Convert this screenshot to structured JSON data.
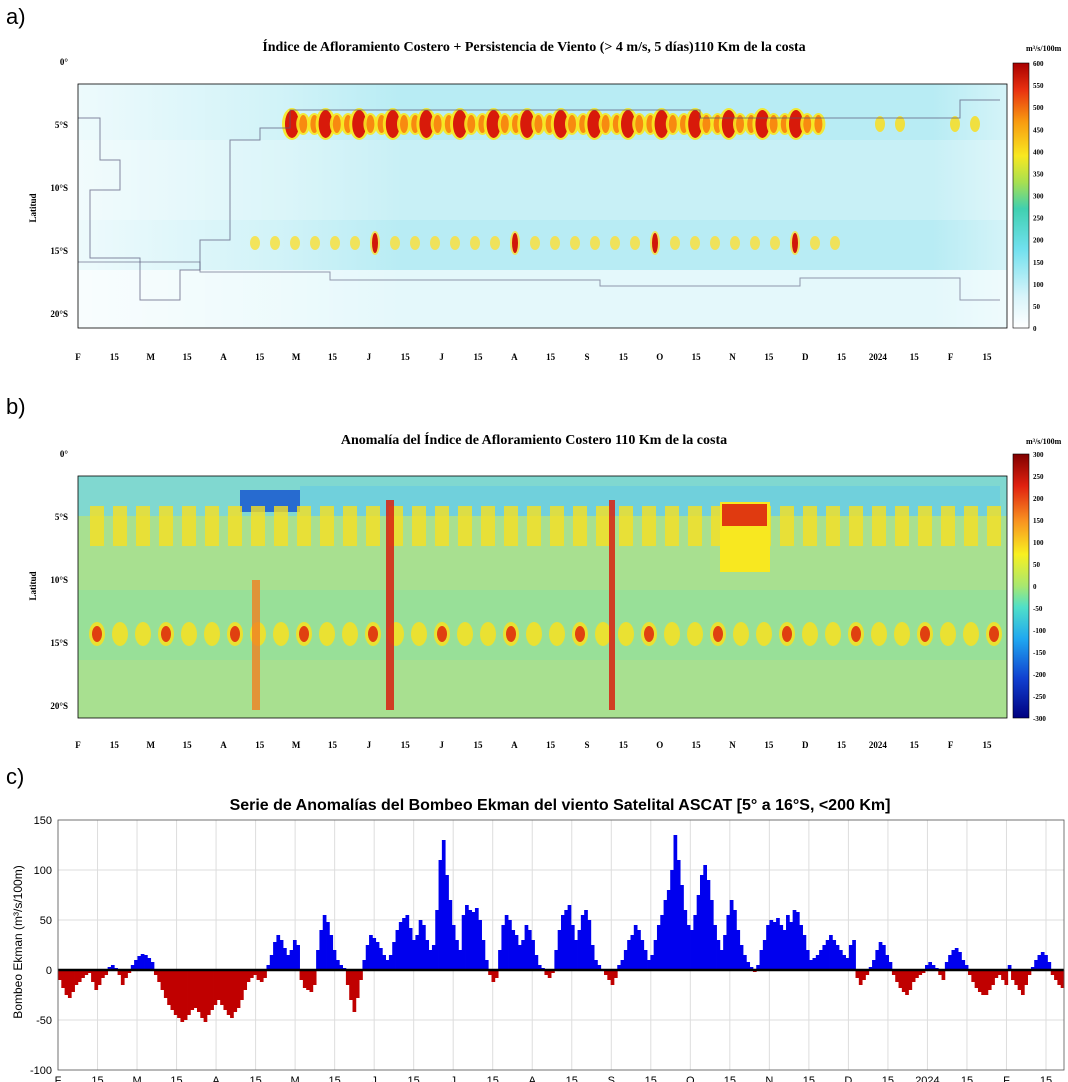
{
  "panels": {
    "a": {
      "letter": "a)",
      "title": "Índice de Afloramiento Costero + Persistencia de Viento (> 4 m/s, 5 días)110 Km de la costa",
      "ylabel": "Latitud",
      "colorbar_unit": "m³/s/100m",
      "colorbar_ticks": [
        "600",
        "550",
        "500",
        "450",
        "400",
        "350",
        "300",
        "250",
        "200",
        "150",
        "100",
        "50",
        "0"
      ]
    },
    "b": {
      "letter": "b)",
      "title": "Anomalía del Índice de Afloramiento Costero 110 Km de la costa",
      "ylabel": "Latitud",
      "colorbar_unit": "m³/s/100m",
      "colorbar_ticks": [
        "300",
        "250",
        "200",
        "150",
        "100",
        "50",
        "0",
        "-50",
        "-100",
        "-150",
        "-200",
        "-250",
        "-300"
      ]
    },
    "c": {
      "letter": "c)",
      "title": "Serie de Anomalías del Bombeo Ekman del viento Satelital ASCAT [5° a 16°S, <200 Km]",
      "ylabel": "Bombeo Ekman (m³/s/100m)"
    }
  },
  "lat_ticks": [
    "0°",
    "5°S",
    "10°S",
    "15°S",
    "20°S"
  ],
  "time_ticks": [
    "F",
    "15",
    "M",
    "15",
    "A",
    "15",
    "M",
    "15",
    "J",
    "15",
    "J",
    "15",
    "A",
    "15",
    "S",
    "15",
    "O",
    "15",
    "N",
    "15",
    "D",
    "15",
    "2024",
    "15",
    "F",
    "15"
  ],
  "colors": {
    "positive_bar": "#0000ee",
    "negative_bar": "#c00000",
    "grid": "#dddddd"
  },
  "chart_data": [
    {
      "type": "heatmap",
      "title": "Índice de Afloramiento Costero + Persistencia de Viento (> 4 m/s, 5 días)110 Km de la costa",
      "ylabel": "Latitud",
      "y_ticks": [
        "0°",
        "5°S",
        "10°S",
        "15°S",
        "20°S"
      ],
      "x_ticks": [
        "F",
        "15",
        "M",
        "15",
        "A",
        "15",
        "M",
        "15",
        "J",
        "15",
        "J",
        "15",
        "A",
        "15",
        "S",
        "15",
        "O",
        "15",
        "N",
        "15",
        "D",
        "15",
        "2024",
        "15",
        "F",
        "15"
      ],
      "colorbar": {
        "min": 0,
        "max": 600,
        "step": 50,
        "unit": "m³/s/100m"
      },
      "bands": [
        {
          "latitude": "5°S",
          "peak_value": 600
        },
        {
          "latitude": "15°S",
          "peak_value": 450
        }
      ]
    },
    {
      "type": "heatmap",
      "title": "Anomalía del Índice de Afloramiento Costero 110 Km de la costa",
      "ylabel": "Latitud",
      "y_ticks": [
        "0°",
        "5°S",
        "10°S",
        "15°S",
        "20°S"
      ],
      "x_ticks": [
        "F",
        "15",
        "M",
        "15",
        "A",
        "15",
        "M",
        "15",
        "J",
        "15",
        "J",
        "15",
        "A",
        "15",
        "S",
        "15",
        "O",
        "15",
        "N",
        "15",
        "D",
        "15",
        "2024",
        "15",
        "F",
        "15"
      ],
      "colorbar": {
        "min": -300,
        "max": 300,
        "step": 50,
        "unit": "m³/s/100m"
      }
    },
    {
      "type": "bar",
      "title": "Serie de Anomalías del Bombeo Ekman del viento Satelital ASCAT [5° a 16°S, <200 Km]",
      "ylabel": "Bombeo Ekman (m³/s/100m)",
      "ylim": [
        -100,
        150
      ],
      "y_ticks": [
        150,
        100,
        50,
        0,
        -50,
        -100
      ],
      "x_ticks": [
        "F",
        "15",
        "M",
        "15",
        "A",
        "15",
        "M",
        "15",
        "J",
        "15",
        "J",
        "15",
        "A",
        "15",
        "S",
        "15",
        "O",
        "15",
        "N",
        "15",
        "D",
        "15",
        "2024",
        "15",
        "F",
        "15"
      ],
      "grid": true,
      "x_start": "2023-02-01",
      "values": [
        -10,
        -18,
        -25,
        -28,
        -22,
        -15,
        -12,
        -8,
        -5,
        -3,
        -12,
        -20,
        -15,
        -8,
        -5,
        3,
        5,
        2,
        -5,
        -15,
        -8,
        -3,
        5,
        10,
        14,
        16,
        15,
        12,
        8,
        -5,
        -12,
        -20,
        -28,
        -35,
        -40,
        -45,
        -48,
        -52,
        -50,
        -45,
        -40,
        -38,
        -42,
        -48,
        -52,
        -45,
        -40,
        -35,
        -30,
        -35,
        -40,
        -45,
        -48,
        -42,
        -38,
        -30,
        -20,
        -12,
        -8,
        -5,
        -10,
        -12,
        -8,
        5,
        15,
        28,
        35,
        30,
        22,
        15,
        20,
        30,
        25,
        -10,
        -18,
        -20,
        -22,
        -15,
        20,
        40,
        55,
        48,
        35,
        20,
        10,
        5,
        2,
        -15,
        -30,
        -42,
        -28,
        -10,
        10,
        25,
        35,
        32,
        28,
        22,
        15,
        10,
        15,
        28,
        40,
        48,
        52,
        55,
        42,
        30,
        35,
        50,
        45,
        30,
        20,
        25,
        60,
        110,
        130,
        95,
        70,
        45,
        30,
        20,
        55,
        65,
        60,
        58,
        62,
        50,
        30,
        10,
        -5,
        -12,
        -8,
        20,
        45,
        55,
        50,
        40,
        35,
        25,
        30,
        45,
        40,
        30,
        15,
        5,
        2,
        -5,
        -8,
        -3,
        20,
        40,
        55,
        60,
        65,
        45,
        30,
        40,
        55,
        60,
        50,
        25,
        10,
        5,
        0,
        -5,
        -10,
        -15,
        -8,
        5,
        10,
        20,
        30,
        35,
        45,
        40,
        30,
        20,
        10,
        15,
        30,
        45,
        55,
        70,
        80,
        100,
        135,
        110,
        85,
        60,
        45,
        40,
        55,
        75,
        95,
        105,
        90,
        70,
        45,
        30,
        20,
        35,
        55,
        70,
        60,
        40,
        25,
        15,
        8,
        3,
        -2,
        5,
        20,
        30,
        45,
        50,
        48,
        52,
        45,
        40,
        55,
        48,
        60,
        58,
        45,
        35,
        20,
        10,
        12,
        15,
        20,
        25,
        30,
        35,
        30,
        25,
        20,
        15,
        12,
        25,
        30,
        -8,
        -15,
        -10,
        -5,
        3,
        10,
        20,
        28,
        25,
        15,
        8,
        -5,
        -12,
        -18,
        -22,
        -25,
        -20,
        -12,
        -8,
        -5,
        -3,
        5,
        8,
        5,
        2,
        -5,
        -10,
        8,
        15,
        20,
        22,
        18,
        10,
        5,
        -5,
        -12,
        -18,
        -22,
        -25,
        -25,
        -20,
        -15,
        -8,
        -5,
        -10,
        -15,
        5,
        -10,
        -15,
        -20,
        -25,
        -15,
        -5,
        3,
        10,
        15,
        18,
        15,
        8,
        -5,
        -10,
        -15,
        -18
      ]
    }
  ]
}
